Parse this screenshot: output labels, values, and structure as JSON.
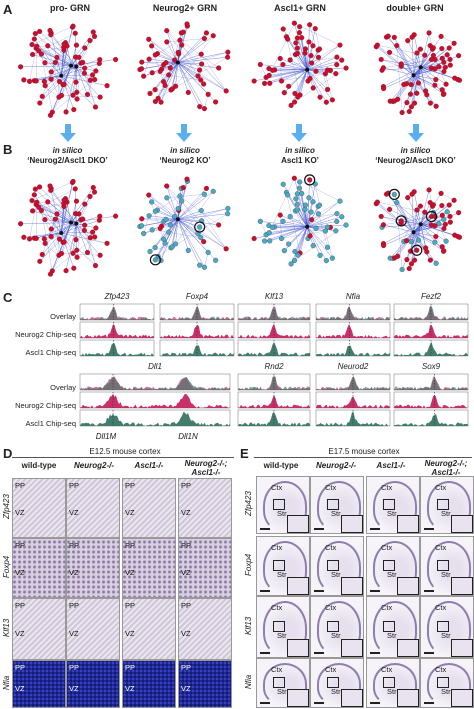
{
  "panels": {
    "A": {
      "label": "A",
      "titles": [
        "pro- GRN",
        "Neurog2+ GRN",
        "Ascl1+ GRN",
        "double+ GRN"
      ]
    },
    "B": {
      "label": "B",
      "in_silico": "in silico",
      "conditions": [
        "‘Neurog2/Ascl1 DKO’",
        "‘Neurog2 KO’",
        "Ascl1 KO’",
        "‘Neurog2/Ascl1 DKO’"
      ]
    },
    "C": {
      "label": "C",
      "row1_genes": [
        "Zfp423",
        "Foxp4",
        "Klf13",
        "Nfia",
        "Fezf2"
      ],
      "row2_genes": [
        "Dll1",
        "Rnd2",
        "Neurod2",
        "Sox9"
      ],
      "track_labels": [
        "Overlay",
        "Neurog2 Chip-seq",
        "Ascl1 Chip-seq"
      ],
      "dll_sublabels": [
        "Dll1M",
        "Dll1N"
      ]
    },
    "D": {
      "label": "D",
      "stage": "E12.5 mouse cortex",
      "columns": [
        "wild-type",
        "Neurog2-/-",
        "Ascl1-/-",
        "Neurog2-/-; Ascl1-/-"
      ],
      "rows": [
        "Zfp423",
        "Foxp4",
        "Klf13",
        "Nfia"
      ],
      "zone_pp": "PP",
      "zone_vz": "VZ"
    },
    "E": {
      "label": "E",
      "stage": "E17.5 mouse cortex",
      "columns": [
        "wild-type",
        "Neurog2-/-",
        "Ascl1-/-",
        "Neurog2-/-; Ascl1-/-"
      ],
      "rows": [
        "Zfp423",
        "Foxp4",
        "Klf13",
        "Nfia"
      ],
      "ctx": "Ctx",
      "str": "Str"
    }
  },
  "colors": {
    "node_red": "#c8102e",
    "node_blue": "#3bb0c9",
    "edge": "#4a5bd4",
    "arrow": "#5ab0ee",
    "chip_neurog2": "#c2185b",
    "chip_ascl1": "#2f6f5e"
  }
}
